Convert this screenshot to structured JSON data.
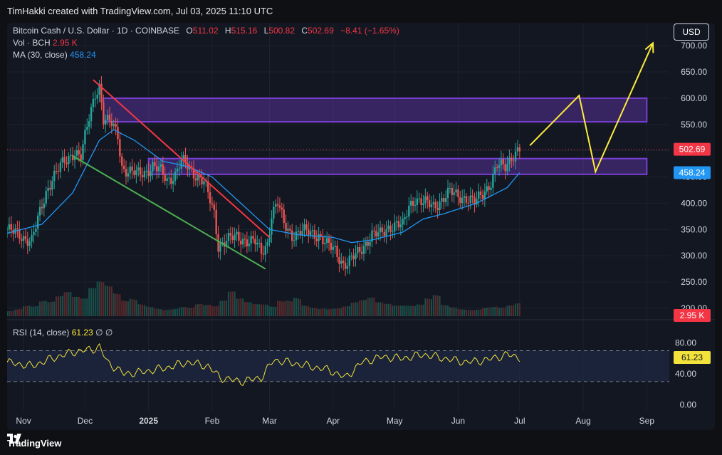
{
  "header": {
    "caption": "TimHakki created with TradingView.com, Jul 03, 2025 11:10 UTC"
  },
  "legend": {
    "symbol": "Bitcoin Cash / U.S. Dollar · 1D · COINBASE",
    "o_label": "O",
    "o": "511.02",
    "h_label": "H",
    "h": "515.16",
    "l_label": "L",
    "l": "500.82",
    "c_label": "C",
    "c": "502.69",
    "change": "−8.41 (−1.65%)",
    "vol_label": "Vol · BCH",
    "vol": "2.95 K",
    "ma_label": "MA (30, close)",
    "ma": "458.24",
    "rsi_label": "RSI (14, close)",
    "rsi": "61.23",
    "rsi_extra": "∅ ∅"
  },
  "currency_button": "USD",
  "footer": {
    "brand": "TradingView",
    "logo_icon": "tradingview-logo-icon"
  },
  "colors": {
    "up": "#26a69a",
    "down": "#ef5350",
    "ma": "#2196f3",
    "rsi": "#f2e23b",
    "zone": "#7b3fd6",
    "downtrend": "#f23645",
    "support": "#4caf50",
    "projection": "#ffeb3b"
  },
  "chart_data": {
    "type": "candlestick",
    "x_labels": [
      "Nov",
      "Dec",
      "2025",
      "Feb",
      "Mar",
      "Apr",
      "May",
      "Jun",
      "Jul",
      "Aug",
      "Sep"
    ],
    "x_label_dates": [
      "2024-11-01",
      "2024-12-01",
      "2025-01-01",
      "2025-02-01",
      "2025-03-01",
      "2025-04-01",
      "2025-05-01",
      "2025-06-01",
      "2025-07-01",
      "2025-08-01",
      "2025-09-01"
    ],
    "y_ticks": [
      200,
      250,
      300,
      350,
      400,
      450,
      500,
      550,
      600,
      650,
      700
    ],
    "y_tick_labels": [
      "200.00",
      "250.00",
      "300.00",
      "350.00",
      "400.00",
      "450.00",
      "500.00",
      "550.00",
      "600.00",
      "650.00",
      "700.00"
    ],
    "ylim": [
      185,
      730
    ],
    "last_price": 502.69,
    "last_price_label": "502.69",
    "ma_last": 458.24,
    "ma_last_label": "458.24",
    "volume_last_label": "2.95 K",
    "close_path": [
      [
        "2024-10-24",
        350
      ],
      [
        "2024-11-01",
        335
      ],
      [
        "2024-11-05",
        330
      ],
      [
        "2024-11-09",
        380
      ],
      [
        "2024-11-12",
        420
      ],
      [
        "2024-11-15",
        450
      ],
      [
        "2024-11-19",
        470
      ],
      [
        "2024-11-22",
        480
      ],
      [
        "2024-11-26",
        500
      ],
      [
        "2024-11-29",
        490
      ],
      [
        "2024-12-03",
        560
      ],
      [
        "2024-12-06",
        610
      ],
      [
        "2024-12-08",
        625
      ],
      [
        "2024-12-10",
        560
      ],
      [
        "2024-12-14",
        550
      ],
      [
        "2024-12-17",
        530
      ],
      [
        "2024-12-19",
        470
      ],
      [
        "2024-12-22",
        460
      ],
      [
        "2024-12-26",
        455
      ],
      [
        "2024-12-30",
        460
      ],
      [
        "2025-01-03",
        470
      ],
      [
        "2025-01-07",
        460
      ],
      [
        "2025-01-10",
        445
      ],
      [
        "2025-01-14",
        455
      ],
      [
        "2025-01-17",
        480
      ],
      [
        "2025-01-20",
        470
      ],
      [
        "2025-01-24",
        455
      ],
      [
        "2025-01-28",
        440
      ],
      [
        "2025-02-02",
        380
      ],
      [
        "2025-02-04",
        320
      ],
      [
        "2025-02-08",
        330
      ],
      [
        "2025-02-13",
        335
      ],
      [
        "2025-02-18",
        330
      ],
      [
        "2025-02-22",
        325
      ],
      [
        "2025-02-25",
        305
      ],
      [
        "2025-02-28",
        325
      ],
      [
        "2025-03-02",
        380
      ],
      [
        "2025-03-05",
        400
      ],
      [
        "2025-03-08",
        360
      ],
      [
        "2025-03-12",
        340
      ],
      [
        "2025-03-16",
        345
      ],
      [
        "2025-03-20",
        345
      ],
      [
        "2025-03-25",
        340
      ],
      [
        "2025-03-29",
        320
      ],
      [
        "2025-04-02",
        310
      ],
      [
        "2025-04-06",
        285
      ],
      [
        "2025-04-08",
        285
      ],
      [
        "2025-04-12",
        300
      ],
      [
        "2025-04-16",
        320
      ],
      [
        "2025-04-20",
        340
      ],
      [
        "2025-04-24",
        340
      ],
      [
        "2025-04-28",
        355
      ],
      [
        "2025-05-02",
        360
      ],
      [
        "2025-05-05",
        355
      ],
      [
        "2025-05-08",
        395
      ],
      [
        "2025-05-11",
        410
      ],
      [
        "2025-05-15",
        400
      ],
      [
        "2025-05-20",
        395
      ],
      [
        "2025-05-25",
        410
      ],
      [
        "2025-05-28",
        420
      ],
      [
        "2025-06-01",
        415
      ],
      [
        "2025-06-05",
        410
      ],
      [
        "2025-06-09",
        400
      ],
      [
        "2025-06-13",
        420
      ],
      [
        "2025-06-17",
        440
      ],
      [
        "2025-06-20",
        470
      ],
      [
        "2025-06-24",
        470
      ],
      [
        "2025-06-27",
        490
      ],
      [
        "2025-07-01",
        502.69
      ]
    ],
    "volume_relative": [
      0.25,
      0.3,
      0.4,
      0.35,
      0.5,
      0.45,
      0.6,
      0.7,
      0.55,
      0.5,
      0.8,
      1.0,
      0.9,
      0.7,
      0.5,
      0.6,
      0.45,
      0.4,
      0.35,
      0.3,
      0.3,
      0.35,
      0.3,
      0.4,
      0.35,
      0.3,
      0.45,
      0.7,
      0.5,
      0.4,
      0.35,
      0.35,
      0.3,
      0.5,
      0.55,
      0.7,
      0.45,
      0.4,
      0.35,
      0.3,
      0.3,
      0.35,
      0.45,
      0.5,
      0.55,
      0.4,
      0.35,
      0.3,
      0.3,
      0.3,
      0.35,
      0.55,
      0.7,
      0.4,
      0.35,
      0.3,
      0.3,
      0.3,
      0.35,
      0.35,
      0.3,
      0.35,
      0.4,
      0.45,
      0.4,
      0.35,
      0.3,
      0.25
    ],
    "ma_path": [
      [
        "2024-10-24",
        343
      ],
      [
        "2024-11-10",
        360
      ],
      [
        "2024-11-25",
        420
      ],
      [
        "2024-12-08",
        520
      ],
      [
        "2024-12-15",
        540
      ],
      [
        "2024-12-25",
        520
      ],
      [
        "2025-01-08",
        480
      ],
      [
        "2025-01-20",
        470
      ],
      [
        "2025-02-01",
        450
      ],
      [
        "2025-02-15",
        400
      ],
      [
        "2025-03-01",
        350
      ],
      [
        "2025-03-15",
        340
      ],
      [
        "2025-04-01",
        335
      ],
      [
        "2025-04-10",
        325
      ],
      [
        "2025-04-20",
        330
      ],
      [
        "2025-05-05",
        345
      ],
      [
        "2025-05-15",
        370
      ],
      [
        "2025-05-25",
        380
      ],
      [
        "2025-06-10",
        400
      ],
      [
        "2025-06-25",
        430
      ],
      [
        "2025-07-01",
        458.24
      ]
    ],
    "rsi": {
      "ticks": [
        0,
        40,
        80
      ],
      "tick_labels": [
        "0.00",
        "40.00",
        "80.00"
      ],
      "bands": [
        30,
        70
      ],
      "ylim": [
        -8,
        100
      ],
      "last": 61.23,
      "last_label": "61.23",
      "path": [
        [
          "2024-10-24",
          55
        ],
        [
          "2024-11-05",
          50
        ],
        [
          "2024-11-15",
          60
        ],
        [
          "2024-11-25",
          68
        ],
        [
          "2024-12-05",
          72
        ],
        [
          "2024-12-08",
          75
        ],
        [
          "2024-12-12",
          55
        ],
        [
          "2024-12-20",
          40
        ],
        [
          "2024-12-28",
          42
        ],
        [
          "2025-01-10",
          48
        ],
        [
          "2025-01-20",
          55
        ],
        [
          "2025-01-30",
          50
        ],
        [
          "2025-02-05",
          35
        ],
        [
          "2025-02-15",
          30
        ],
        [
          "2025-02-25",
          35
        ],
        [
          "2025-03-03",
          58
        ],
        [
          "2025-03-10",
          55
        ],
        [
          "2025-03-20",
          50
        ],
        [
          "2025-03-30",
          45
        ],
        [
          "2025-04-07",
          35
        ],
        [
          "2025-04-15",
          55
        ],
        [
          "2025-04-25",
          62
        ],
        [
          "2025-05-05",
          60
        ],
        [
          "2025-05-15",
          65
        ],
        [
          "2025-05-25",
          60
        ],
        [
          "2025-06-05",
          55
        ],
        [
          "2025-06-15",
          58
        ],
        [
          "2025-06-25",
          65
        ],
        [
          "2025-07-01",
          61.23
        ]
      ]
    },
    "zones": [
      {
        "from": "2024-12-10",
        "to": "2025-09-01",
        "low": 555,
        "high": 600
      },
      {
        "from": "2025-01-01",
        "to": "2025-09-01",
        "low": 455,
        "high": 485
      }
    ],
    "trendlines": [
      {
        "kind": "downtrend",
        "points": [
          [
            "2024-12-05",
            635
          ],
          [
            "2025-03-01",
            335
          ]
        ]
      },
      {
        "kind": "support",
        "points": [
          [
            "2024-11-25",
            490
          ],
          [
            "2025-02-27",
            275
          ]
        ]
      },
      {
        "kind": "projection",
        "points": [
          [
            "2025-07-06",
            510
          ],
          [
            "2025-07-30",
            605
          ],
          [
            "2025-08-07",
            460
          ],
          [
            "2025-09-04",
            705
          ]
        ]
      }
    ]
  }
}
